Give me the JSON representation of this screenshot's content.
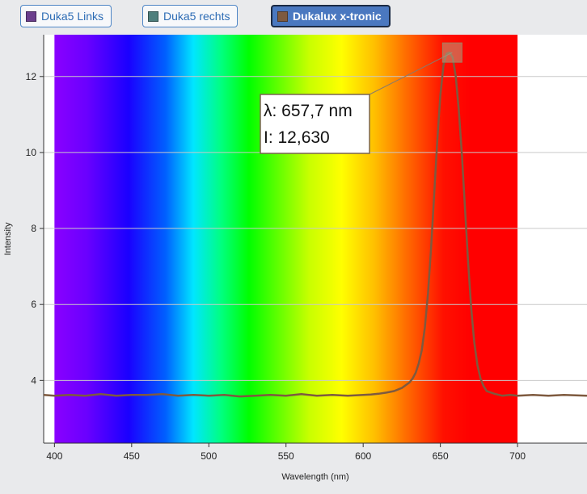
{
  "legend": {
    "items": [
      {
        "label": "Duka5 Links",
        "color": "#6b3e8c",
        "active": false
      },
      {
        "label": "Duka5 rechts",
        "color": "#4f7f7c",
        "active": false
      },
      {
        "label": "Dukalux x-tronic",
        "color": "#7e5a3f",
        "active": true
      }
    ]
  },
  "tooltip": {
    "lambda_text": "λ: 657,7 nm",
    "intensity_text": "I: 12,630"
  },
  "chart_data": {
    "type": "line",
    "xlabel": "Wavelength (nm)",
    "ylabel": "Intensity",
    "xlim": [
      393,
      745
    ],
    "ylim": [
      2.35,
      13.1
    ],
    "x_ticks": [
      400,
      450,
      500,
      550,
      600,
      650,
      700
    ],
    "y_ticks": [
      4,
      6,
      8,
      10,
      12
    ],
    "grid": "horizontal",
    "spectrum_band": [
      400,
      700
    ],
    "highlight": {
      "x": 657.7,
      "y": 12.63
    },
    "series": [
      {
        "name": "Dukalux x-tronic",
        "color": "#7e5a3f",
        "x": [
          393,
          400,
          410,
          420,
          430,
          440,
          450,
          460,
          470,
          480,
          490,
          500,
          510,
          520,
          530,
          540,
          550,
          560,
          570,
          580,
          590,
          600,
          605,
          610,
          615,
          620,
          625,
          630,
          632,
          634,
          636,
          638,
          640,
          642,
          644,
          646,
          648,
          650,
          652,
          654,
          656,
          658,
          660,
          662,
          664,
          666,
          668,
          670,
          672,
          674,
          676,
          678,
          680,
          685,
          690,
          695,
          700,
          710,
          720,
          730,
          745
        ],
        "y": [
          3.62,
          3.6,
          3.62,
          3.6,
          3.64,
          3.6,
          3.62,
          3.62,
          3.64,
          3.6,
          3.62,
          3.6,
          3.62,
          3.58,
          3.6,
          3.62,
          3.6,
          3.64,
          3.6,
          3.62,
          3.6,
          3.62,
          3.63,
          3.65,
          3.68,
          3.72,
          3.8,
          3.95,
          4.05,
          4.2,
          4.45,
          4.8,
          5.4,
          6.3,
          7.5,
          8.9,
          10.3,
          11.5,
          12.3,
          12.6,
          12.63,
          12.5,
          12.0,
          11.1,
          9.9,
          8.5,
          7.1,
          5.9,
          5.0,
          4.4,
          4.05,
          3.85,
          3.72,
          3.65,
          3.6,
          3.62,
          3.6,
          3.62,
          3.6,
          3.62,
          3.6
        ]
      }
    ]
  }
}
